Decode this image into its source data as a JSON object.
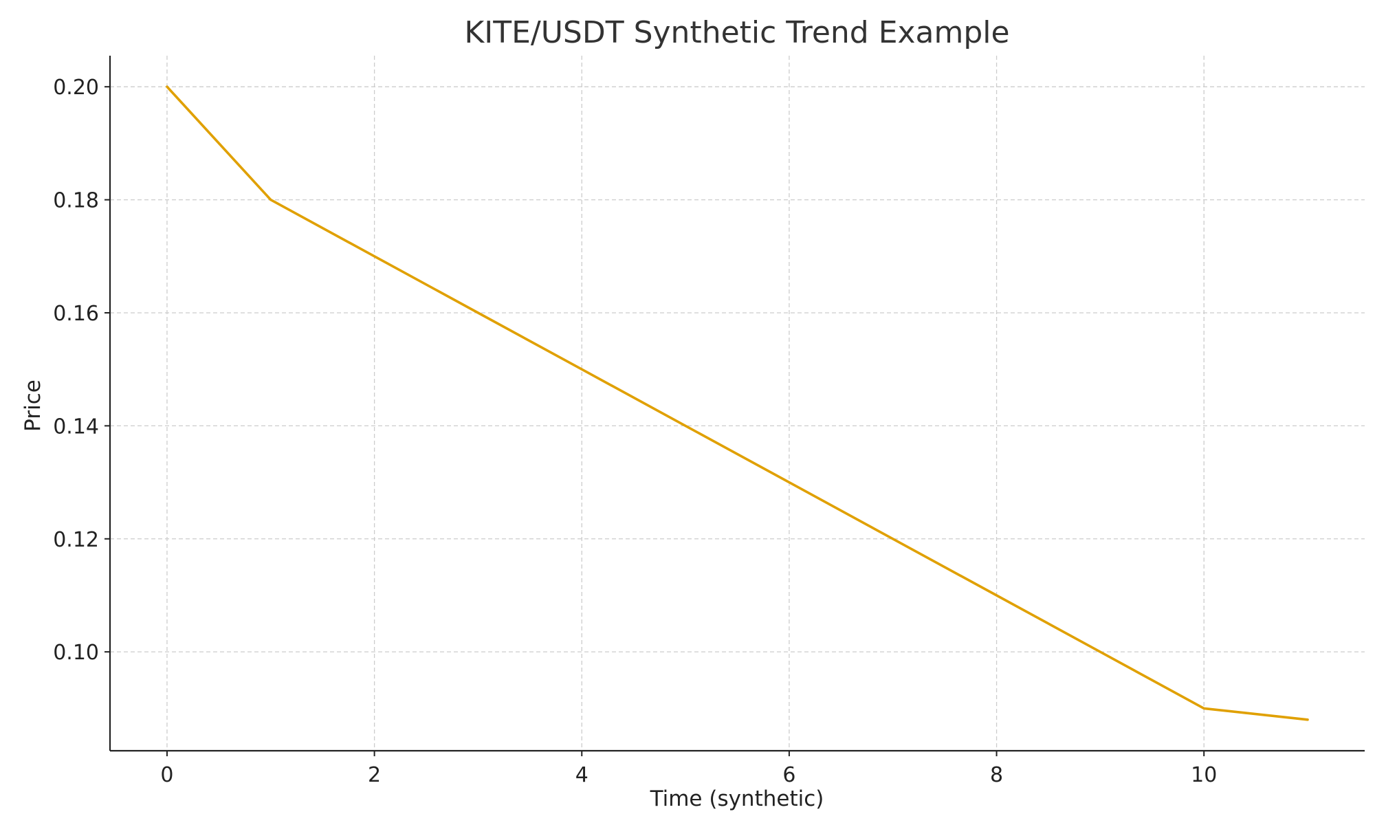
{
  "chart_data": {
    "type": "line",
    "title": "KITE/USDT Synthetic Trend Example",
    "xlabel": "Time (synthetic)",
    "ylabel": "Price",
    "xlim": [
      -0.55,
      11.55
    ],
    "ylim": [
      0.0825,
      0.2055
    ],
    "x_ticks": [
      0,
      2,
      4,
      6,
      8,
      10
    ],
    "x_tick_labels": [
      "0",
      "2",
      "4",
      "6",
      "8",
      "10"
    ],
    "y_ticks": [
      0.1,
      0.12,
      0.14,
      0.16,
      0.18,
      0.2
    ],
    "y_tick_labels": [
      "0.10",
      "0.12",
      "0.14",
      "0.16",
      "0.18",
      "0.20"
    ],
    "grid": true,
    "series": [
      {
        "color": "#e0a000",
        "x": [
          0,
          1,
          2,
          3,
          4,
          5,
          6,
          7,
          8,
          9,
          10,
          11
        ],
        "y": [
          0.2,
          0.18,
          0.17,
          0.16,
          0.15,
          0.14,
          0.13,
          0.12,
          0.11,
          0.1,
          0.09,
          0.088
        ]
      }
    ]
  }
}
